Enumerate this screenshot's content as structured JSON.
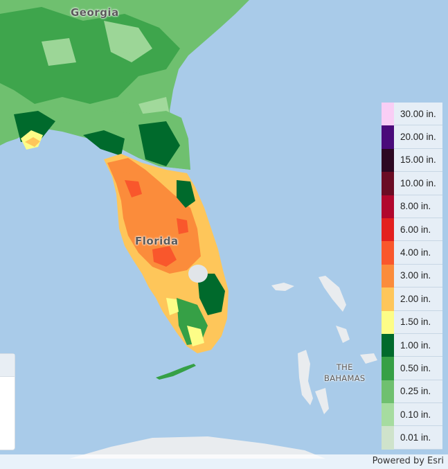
{
  "map": {
    "labels": {
      "georgia": "Georgia",
      "florida": "Florida",
      "bahamas_line1": "THE",
      "bahamas_line2": "BAHAMAS"
    },
    "attribution": "Powered by Esri",
    "colors": {
      "water": "#a9cbe9",
      "land_light": "#e9ecef"
    }
  },
  "legend": {
    "items": [
      {
        "label": "30.00 in.",
        "color": "#f9cef5"
      },
      {
        "label": "20.00 in.",
        "color": "#4a0b7a"
      },
      {
        "label": "15.00 in.",
        "color": "#2c0822"
      },
      {
        "label": "10.00 in.",
        "color": "#6a0c24"
      },
      {
        "label": "8.00 in.",
        "color": "#b1072d"
      },
      {
        "label": "6.00 in.",
        "color": "#e3201f"
      },
      {
        "label": "4.00 in.",
        "color": "#f9572c"
      },
      {
        "label": "3.00 in.",
        "color": "#fb8c3b"
      },
      {
        "label": "2.00 in.",
        "color": "#fec65a"
      },
      {
        "label": "1.50 in.",
        "color": "#fdfd87"
      },
      {
        "label": "1.00 in.",
        "color": "#006a2c"
      },
      {
        "label": "0.50 in.",
        "color": "#36a046"
      },
      {
        "label": "0.25 in.",
        "color": "#6fc06f"
      },
      {
        "label": "0.10 in.",
        "color": "#a6dca0"
      },
      {
        "label": "0.01 in.",
        "color": "#cfe3cb"
      }
    ]
  }
}
